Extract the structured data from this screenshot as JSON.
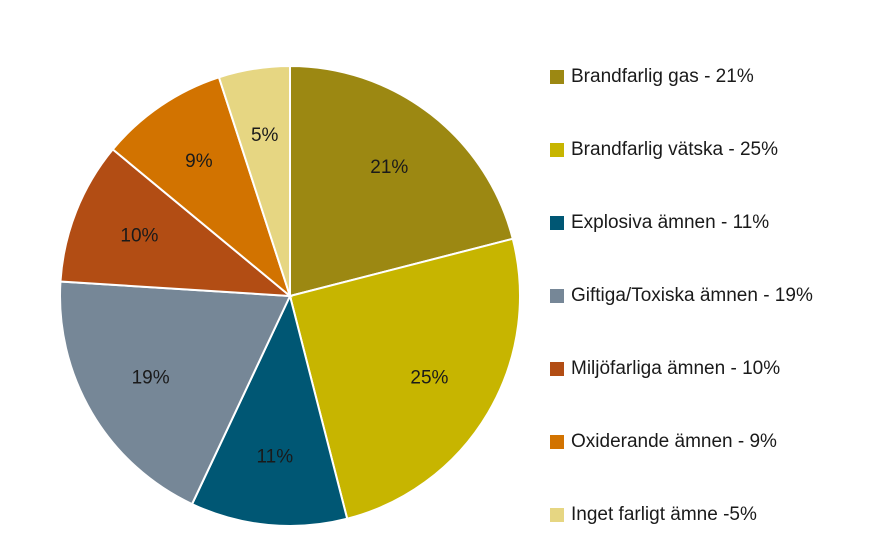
{
  "chart_data": {
    "type": "pie",
    "title": "",
    "slices": [
      {
        "label": "21%",
        "value": 21,
        "legend": "Brandfarlig gas - 21%",
        "color": "#9c8812"
      },
      {
        "label": "25%",
        "value": 25,
        "legend": "Brandfarlig vätska - 25%",
        "color": "#c7b500"
      },
      {
        "label": "11%",
        "value": 11,
        "legend": "Explosiva ämnen - 11%",
        "color": "#005774"
      },
      {
        "label": "19%",
        "value": 19,
        "legend": "Giftiga/Toxiska ämnen - 19%",
        "color": "#768797"
      },
      {
        "label": "10%",
        "value": 10,
        "legend": "Miljöfarliga ämnen - 10%",
        "color": "#b24d14"
      },
      {
        "label": "9%",
        "value": 9,
        "legend": "Oxiderande ämnen - 9%",
        "color": "#d27300"
      },
      {
        "label": "5%",
        "value": 5,
        "legend": "Inget farligt ämne -5%",
        "color": "#e6d682"
      }
    ],
    "start_angle_deg": 0,
    "direction": "clockwise",
    "legend_position": "right"
  }
}
